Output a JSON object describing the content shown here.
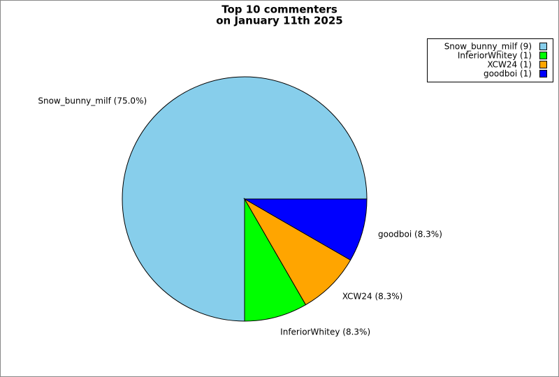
{
  "chart_data": {
    "type": "pie",
    "title": [
      "Top 10 commenters",
      "on January 11th 2025"
    ],
    "categories": [
      "Snow_bunny_milf",
      "InferiorWhitey",
      "XCW24",
      "goodboi"
    ],
    "values": [
      9,
      1,
      1,
      1
    ],
    "colors": [
      "#87ceeb",
      "#00ff00",
      "#ffa500",
      "#0000ff"
    ],
    "slice_labels": [
      "Snow_bunny_milf (75.0%)",
      "InferiorWhitey (8.3%)",
      "XCW24 (8.3%)",
      "goodboi (8.3%)"
    ],
    "legend_labels": [
      "Snow_bunny_milf (9)",
      "InferiorWhitey (1)",
      "XCW24 (1)",
      "goodboi (1)"
    ],
    "legend": "upper right"
  }
}
